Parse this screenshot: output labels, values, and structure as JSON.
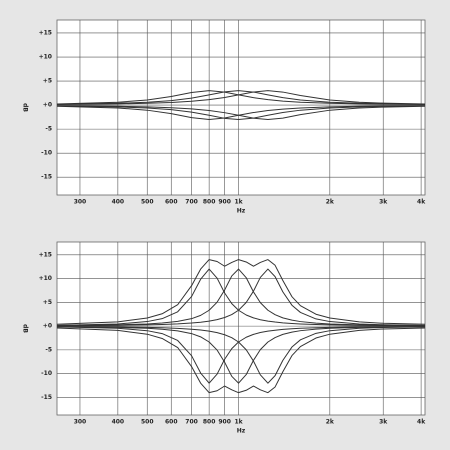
{
  "chart_data": [
    {
      "type": "line",
      "x_label": "Hz",
      "y_label": "dB",
      "log_x": true,
      "grid": true,
      "xlim": [
        252,
        4120
      ],
      "ylim": [
        -18.7,
        17.7
      ],
      "xticks": [
        300,
        400,
        500,
        600,
        700,
        800,
        900,
        {
          "value": 1000,
          "label": "1k"
        },
        {
          "value": 2000,
          "label": "2k"
        },
        {
          "value": 3000,
          "label": "3k"
        },
        {
          "value": 4000,
          "label": "4k"
        }
      ],
      "yticks": [
        {
          "value": 15,
          "label": "+15"
        },
        {
          "value": 10,
          "label": "+10"
        },
        {
          "value": 5,
          "label": "+5"
        },
        {
          "value": 0,
          "label": "+0"
        },
        -5,
        -10,
        -15
      ],
      "x": [
        252,
        400,
        500,
        600,
        700,
        800,
        900,
        1000,
        1120,
        1250,
        1400,
        1600,
        2000,
        2500,
        3000,
        4120
      ],
      "series": [
        {
          "color": "#333333",
          "values": [
            0.24,
            0.6,
            1.06,
            1.78,
            2.61,
            3.0,
            2.69,
            2.12,
            1.55,
            1.13,
            0.83,
            0.6,
            0.38,
            0.25,
            0.19,
            0.13
          ]
        },
        {
          "color": "#333333",
          "values": [
            0.18,
            0.38,
            0.6,
            0.94,
            1.46,
            2.12,
            2.75,
            3.0,
            2.71,
            2.12,
            1.55,
            1.06,
            0.6,
            0.38,
            0.27,
            0.17
          ]
        },
        {
          "color": "#333333",
          "values": [
            0.13,
            0.25,
            0.38,
            0.55,
            0.79,
            1.13,
            1.58,
            2.12,
            2.72,
            3.0,
            2.71,
            1.99,
            1.06,
            0.6,
            0.41,
            0.24
          ]
        },
        {
          "color": "#333333",
          "values": [
            -0.24,
            -0.6,
            -1.06,
            -1.78,
            -2.61,
            -3.0,
            -2.69,
            -2.12,
            -1.55,
            -1.13,
            -0.83,
            -0.6,
            -0.38,
            -0.25,
            -0.19,
            -0.13
          ]
        },
        {
          "color": "#333333",
          "values": [
            -0.18,
            -0.38,
            -0.6,
            -0.94,
            -1.46,
            -2.12,
            -2.75,
            -3.0,
            -2.71,
            -2.12,
            -1.55,
            -1.06,
            -0.6,
            -0.38,
            -0.27,
            -0.17
          ]
        },
        {
          "color": "#333333",
          "values": [
            -0.13,
            -0.25,
            -0.38,
            -0.55,
            -0.79,
            -1.13,
            -1.58,
            -2.12,
            -2.72,
            -3.0,
            -2.71,
            -1.99,
            -1.06,
            -0.6,
            -0.41,
            -0.24
          ]
        }
      ]
    },
    {
      "type": "line",
      "x_label": "Hz",
      "y_label": "dB",
      "log_x": true,
      "grid": true,
      "xlim": [
        252,
        4120
      ],
      "ylim": [
        -18.7,
        17.7
      ],
      "xticks": [
        300,
        400,
        500,
        600,
        700,
        800,
        900,
        {
          "value": 1000,
          "label": "1k"
        },
        {
          "value": 2000,
          "label": "2k"
        },
        {
          "value": 3000,
          "label": "3k"
        },
        {
          "value": 4000,
          "label": "4k"
        }
      ],
      "yticks": [
        {
          "value": 15,
          "label": "+15"
        },
        {
          "value": 10,
          "label": "+10"
        },
        {
          "value": 5,
          "label": "+5"
        },
        {
          "value": 0,
          "label": "+0"
        },
        -5,
        -10,
        -15
      ],
      "x": [
        252,
        400,
        500,
        560,
        630,
        700,
        750,
        800,
        850,
        900,
        950,
        1000,
        1060,
        1120,
        1180,
        1250,
        1320,
        1400,
        1500,
        1600,
        1800,
        2000,
        2500,
        3000,
        4120
      ],
      "series": [
        {
          "color": "#333333",
          "values": [
            0.17,
            0.46,
            0.96,
            1.57,
            3.02,
            6.22,
            9.87,
            12,
            10.09,
            6.97,
            4.73,
            3.34,
            2.34,
            1.74,
            1.35,
            1.06,
            0.86,
            0.69,
            0.56,
            0.46,
            0.34,
            0.27,
            0.17,
            0.13,
            0.09
          ]
        },
        {
          "color": "#333333",
          "values": [
            0.12,
            0.27,
            0.46,
            0.65,
            0.99,
            1.57,
            2.26,
            3.34,
            5.04,
            7.6,
            10.56,
            12,
            10.2,
            7.21,
            4.94,
            3.34,
            2.4,
            1.74,
            1.26,
            0.96,
            0.63,
            0.46,
            0.27,
            0.19,
            0.11
          ]
        },
        {
          "color": "#333333",
          "values": [
            0.09,
            0.17,
            0.27,
            0.35,
            0.47,
            0.65,
            0.82,
            1.06,
            1.37,
            1.81,
            2.44,
            3.34,
            4.97,
            7.35,
            10.24,
            12,
            10.42,
            7.21,
            4.4,
            2.88,
            1.52,
            0.96,
            0.46,
            0.29,
            0.16
          ]
        },
        {
          "color": "#333333",
          "values": [
            0.4,
            0.9,
            1.7,
            2.6,
            4.5,
            8.5,
            12.0,
            14.0,
            13.6,
            12.6,
            13.4,
            14.0,
            13.5,
            12.6,
            13.4,
            14.0,
            12.8,
            9.6,
            6.2,
            4.3,
            2.5,
            1.7,
            0.9,
            0.6,
            0.4
          ]
        },
        {
          "color": "#333333",
          "values": [
            -0.17,
            -0.46,
            -0.96,
            -1.57,
            -3.02,
            -6.22,
            -9.87,
            -12,
            -10.09,
            -6.97,
            -4.73,
            -3.34,
            -2.34,
            -1.74,
            -1.35,
            -1.06,
            -0.86,
            -0.69,
            -0.56,
            -0.46,
            -0.34,
            -0.27,
            -0.17,
            -0.13,
            -0.09
          ]
        },
        {
          "color": "#333333",
          "values": [
            -0.12,
            -0.27,
            -0.46,
            -0.65,
            -0.99,
            -1.57,
            -2.26,
            -3.34,
            -5.04,
            -7.6,
            -10.56,
            -12,
            -10.2,
            -7.21,
            -4.94,
            -3.34,
            -2.4,
            -1.74,
            -1.26,
            -0.96,
            -0.63,
            -0.46,
            -0.27,
            -0.19,
            -0.11
          ]
        },
        {
          "color": "#333333",
          "values": [
            -0.09,
            -0.17,
            -0.27,
            -0.35,
            -0.47,
            -0.65,
            -0.82,
            -1.06,
            -1.37,
            -1.81,
            -2.44,
            -3.34,
            -4.97,
            -7.35,
            -10.24,
            -12,
            -10.42,
            -7.21,
            -4.4,
            -2.88,
            -1.52,
            -0.96,
            -0.46,
            -0.29,
            -0.16
          ]
        },
        {
          "color": "#333333",
          "values": [
            -0.4,
            -0.9,
            -1.7,
            -2.6,
            -4.5,
            -8.5,
            -12.0,
            -14.0,
            -13.6,
            -12.6,
            -13.4,
            -14.0,
            -13.5,
            -12.6,
            -13.4,
            -14.0,
            -12.8,
            -9.6,
            -6.2,
            -4.3,
            -2.5,
            -1.7,
            -0.9,
            -0.6,
            -0.4
          ]
        }
      ]
    }
  ]
}
